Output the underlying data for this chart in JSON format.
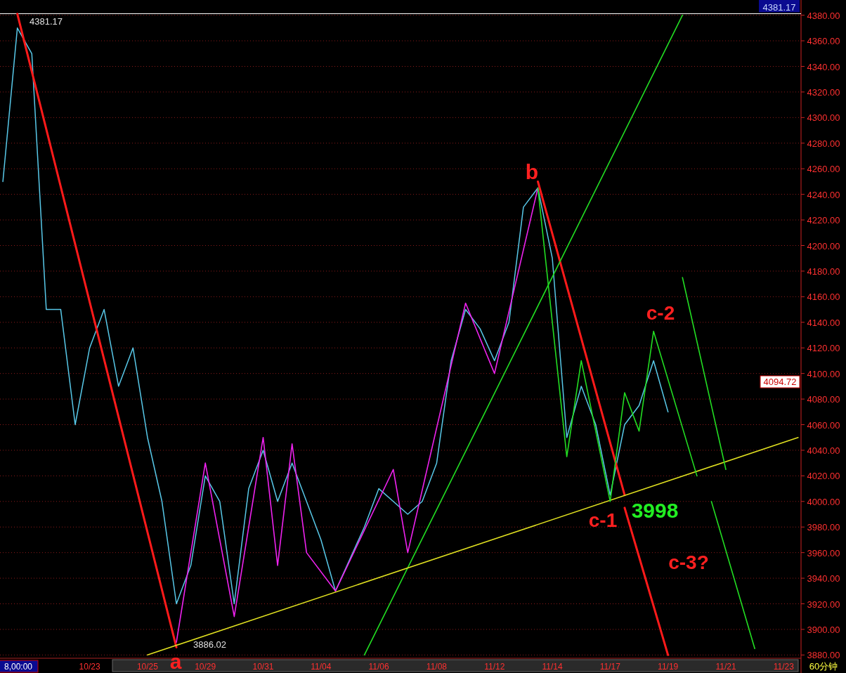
{
  "chart_data": {
    "type": "line",
    "categories": [
      null,
      null,
      null,
      null,
      null,
      null,
      "10/23",
      null,
      null,
      null,
      "10/25",
      null,
      null,
      null,
      "10/29",
      null,
      null,
      null,
      "10/31",
      null,
      null,
      null,
      "11/04",
      null,
      null,
      null,
      "11/06",
      null,
      null,
      null,
      "11/08",
      null,
      null,
      null,
      "11/12",
      null,
      null,
      null,
      "11/14",
      null,
      null,
      null,
      "11/17",
      null,
      null,
      null,
      "11/19",
      null,
      null,
      null,
      "11/21",
      null,
      null,
      null,
      "11/23",
      null
    ],
    "annotations": [
      "a",
      "b",
      "c-1",
      "3998",
      "c-2",
      "c-3?",
      {
        "text": "4381.17",
        "y": 4381.17
      },
      "3886.02",
      "4094.72",
      "8,00:00",
      "60分钟"
    ],
    "series": [
      {
        "color": "#58c8e8",
        "values": [
          4250,
          4370,
          4350,
          4150,
          4150,
          4060,
          4120,
          4150,
          4090,
          4120,
          4050,
          4000,
          3920,
          3950,
          4020,
          4000,
          3920,
          4010,
          4040,
          4000,
          4030,
          4000,
          3970,
          3930,
          3955,
          3980,
          4010,
          4000,
          3990,
          4000,
          4030,
          4110,
          4150,
          4135,
          4110,
          4140,
          4230,
          4245,
          4190,
          4050,
          4090,
          4060,
          4005,
          4060,
          4075,
          4110,
          4070,
          null,
          null,
          null,
          null,
          null,
          null,
          null,
          null,
          null
        ]
      },
      {
        "color": "#ff1a1a",
        "values": [
          null,
          4381,
          null,
          null,
          null,
          null,
          null,
          null,
          null,
          null,
          null,
          null,
          3886,
          null,
          null,
          null,
          null,
          null,
          null,
          null,
          null,
          null,
          null,
          null,
          null,
          null,
          null,
          null,
          null,
          null,
          null,
          null,
          null,
          null,
          null,
          null,
          null,
          null,
          null,
          null,
          null,
          null,
          null,
          null,
          null,
          null,
          null,
          null,
          null,
          null,
          null,
          null,
          null,
          null,
          null,
          null
        ]
      },
      {
        "color": "#ff1a1a",
        "values": [
          null,
          null,
          null,
          null,
          null,
          null,
          null,
          null,
          null,
          null,
          null,
          null,
          null,
          null,
          null,
          null,
          null,
          null,
          null,
          null,
          null,
          null,
          null,
          null,
          null,
          null,
          null,
          null,
          null,
          null,
          null,
          null,
          null,
          null,
          null,
          null,
          null,
          4250,
          null,
          null,
          null,
          null,
          null,
          4005,
          null,
          null,
          null,
          null,
          null,
          null,
          null,
          null,
          null,
          null,
          null,
          null
        ]
      },
      {
        "color": "#ff1a1a",
        "values": [
          null,
          null,
          null,
          null,
          null,
          null,
          null,
          null,
          null,
          null,
          null,
          null,
          null,
          null,
          null,
          null,
          null,
          null,
          null,
          null,
          null,
          null,
          null,
          null,
          null,
          null,
          null,
          null,
          null,
          null,
          null,
          null,
          null,
          null,
          null,
          null,
          null,
          null,
          null,
          null,
          null,
          null,
          null,
          3995,
          null,
          null,
          3880,
          null,
          null,
          null,
          null,
          null,
          null,
          null,
          null,
          null
        ]
      },
      {
        "color": "#22dd22",
        "values": [
          null,
          null,
          null,
          null,
          null,
          null,
          null,
          null,
          null,
          null,
          null,
          null,
          null,
          null,
          null,
          null,
          null,
          null,
          null,
          null,
          null,
          null,
          null,
          null,
          null,
          3880,
          null,
          null,
          null,
          null,
          null,
          null,
          null,
          null,
          null,
          null,
          null,
          null,
          null,
          null,
          null,
          null,
          null,
          null,
          null,
          null,
          null,
          4380,
          null,
          null,
          null,
          null,
          null,
          null,
          null,
          null
        ]
      },
      {
        "color": "#e0e020",
        "values": [
          null,
          null,
          null,
          null,
          null,
          null,
          null,
          null,
          null,
          null,
          3880,
          null,
          null,
          null,
          null,
          null,
          null,
          null,
          null,
          null,
          null,
          null,
          null,
          null,
          null,
          null,
          null,
          null,
          null,
          null,
          null,
          null,
          null,
          null,
          null,
          null,
          null,
          null,
          null,
          null,
          null,
          null,
          null,
          null,
          null,
          null,
          null,
          null,
          null,
          null,
          null,
          null,
          null,
          null,
          null,
          4050
        ]
      },
      {
        "color": "#ee22ee",
        "values": [
          null,
          null,
          null,
          null,
          null,
          null,
          null,
          null,
          null,
          null,
          null,
          null,
          3890,
          null,
          4030,
          null,
          3910,
          null,
          4050,
          3950,
          4045,
          3960,
          null,
          3930,
          null,
          null,
          null,
          4025,
          3960,
          null,
          null,
          null,
          4155,
          null,
          4100,
          null,
          null,
          4245,
          null,
          null,
          null,
          null,
          null,
          null,
          null,
          null,
          null,
          null,
          null,
          null,
          null,
          null,
          null,
          null,
          null,
          null
        ]
      },
      {
        "color": "#22dd22",
        "values": [
          null,
          null,
          null,
          null,
          null,
          null,
          null,
          null,
          null,
          null,
          null,
          null,
          null,
          null,
          null,
          null,
          null,
          null,
          null,
          null,
          null,
          null,
          null,
          null,
          null,
          null,
          null,
          null,
          null,
          null,
          null,
          null,
          null,
          null,
          null,
          null,
          null,
          4245,
          null,
          4035,
          4110,
          null,
          4000,
          4085,
          4055,
          4133,
          null,
          null,
          4020,
          null,
          null,
          null,
          null,
          null,
          null,
          null
        ]
      },
      {
        "color": "#22dd22",
        "values": [
          null,
          null,
          null,
          null,
          null,
          null,
          null,
          null,
          null,
          null,
          null,
          null,
          null,
          null,
          null,
          null,
          null,
          null,
          null,
          null,
          null,
          null,
          null,
          null,
          null,
          null,
          null,
          null,
          null,
          null,
          null,
          null,
          null,
          null,
          null,
          null,
          null,
          null,
          null,
          null,
          null,
          null,
          null,
          null,
          null,
          null,
          null,
          4175,
          null,
          null,
          4025,
          null,
          null,
          null,
          null,
          null
        ]
      },
      {
        "color": "#22dd22",
        "values": [
          null,
          null,
          null,
          null,
          null,
          null,
          null,
          null,
          null,
          null,
          null,
          null,
          null,
          null,
          null,
          null,
          null,
          null,
          null,
          null,
          null,
          null,
          null,
          null,
          null,
          null,
          null,
          null,
          null,
          null,
          null,
          null,
          null,
          null,
          null,
          null,
          null,
          null,
          null,
          null,
          null,
          null,
          null,
          null,
          null,
          null,
          null,
          null,
          null,
          4000,
          null,
          null,
          3885,
          null,
          null,
          null
        ]
      }
    ],
    "ylim": [
      3878,
      4382
    ],
    "yticks": [
      {
        "value": 3880,
        "label": "3880.00"
      },
      {
        "value": 3900,
        "label": "3900.00"
      },
      {
        "value": 3920,
        "label": "3920.00"
      },
      {
        "value": 3940,
        "label": "3940.00"
      },
      {
        "value": 3960,
        "label": "3960.00"
      },
      {
        "value": 3980,
        "label": "3980.00"
      },
      {
        "value": 4000,
        "label": "4000.00"
      },
      {
        "value": 4020,
        "label": "4020.00"
      },
      {
        "value": 4040,
        "label": "4040.00"
      },
      {
        "value": 4060,
        "label": "4060.00"
      },
      {
        "value": 4080,
        "label": "4080.00"
      },
      {
        "value": 4100,
        "label": "4100.00"
      },
      {
        "value": 4120,
        "label": "4120.00"
      },
      {
        "value": 4140,
        "label": "4140.00"
      },
      {
        "value": 4160,
        "label": "4160.00"
      },
      {
        "value": 4180,
        "label": "4180.00"
      },
      {
        "value": 4200,
        "label": "4200.00"
      },
      {
        "value": 4220,
        "label": "4220.00"
      },
      {
        "value": 4240,
        "label": "4240.00"
      },
      {
        "value": 4260,
        "label": "4260.00"
      },
      {
        "value": 4280,
        "label": "4280.00"
      },
      {
        "value": 4300,
        "label": "4300.00"
      },
      {
        "value": 4320,
        "label": "4320.00"
      },
      {
        "value": 4340,
        "label": "4340.00"
      },
      {
        "value": 4360,
        "label": "4360.00"
      },
      {
        "value": 4380,
        "label": "4380.00"
      }
    ],
    "ref_lines": [
      {
        "axis": "y",
        "value": 4381.17,
        "label": "4381.17",
        "color": "#ffffff"
      }
    ],
    "grid": "y",
    "marker": "none",
    "line_style": "solid"
  }
}
